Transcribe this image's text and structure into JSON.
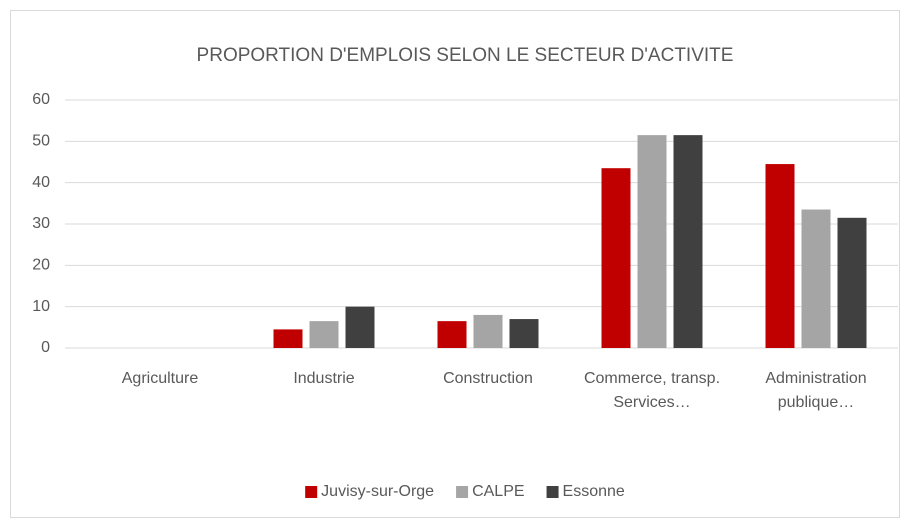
{
  "chart_data": {
    "type": "bar",
    "title": "PROPORTION  D'EMPLOIS SELON LE SECTEUR D'ACTIVITE",
    "categories": [
      "Agriculture",
      "Industrie",
      "Construction",
      "Commerce, transp. Services…",
      "Administration publique…"
    ],
    "series": [
      {
        "name": "Juvisy-sur-Orge",
        "color": "#c00000",
        "values": [
          0,
          4.5,
          6.5,
          43.5,
          44.5
        ]
      },
      {
        "name": "CALPE",
        "color": "#a5a5a5",
        "values": [
          0,
          6.5,
          8,
          51.5,
          33.5
        ]
      },
      {
        "name": "Essonne",
        "color": "#404040",
        "values": [
          0,
          10,
          7,
          51.5,
          31.5
        ]
      }
    ],
    "ylim": [
      0,
      60
    ],
    "yticks": [
      0,
      10,
      20,
      30,
      40,
      50,
      60
    ],
    "grid": true,
    "legend": "bottom"
  }
}
